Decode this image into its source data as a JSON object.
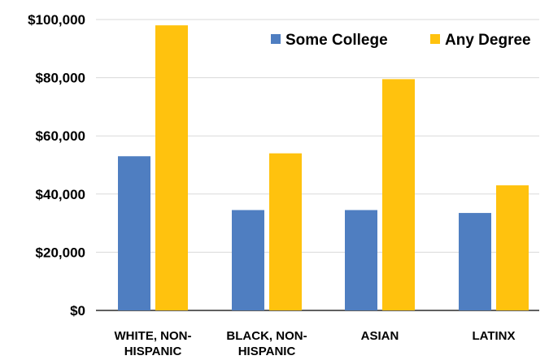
{
  "chart_data": {
    "type": "bar",
    "title": "",
    "xlabel": "",
    "ylabel": "",
    "categories": [
      [
        "WHITE, NON-",
        "HISPANIC"
      ],
      [
        "BLACK, NON-",
        "HISPANIC"
      ],
      [
        "ASIAN"
      ],
      [
        "LATINX"
      ]
    ],
    "series": [
      {
        "name": "Some College",
        "color": "#4f7ec1",
        "values": [
          53000,
          34500,
          34500,
          33500
        ]
      },
      {
        "name": "Any Degree",
        "color": "#ffc20e",
        "values": [
          98000,
          54000,
          79500,
          43000
        ]
      }
    ],
    "ylim": [
      0,
      100000
    ],
    "yticks": [
      0,
      20000,
      40000,
      60000,
      80000,
      100000
    ],
    "ytick_labels": [
      "$0",
      "$20,000",
      "$40,000",
      "$60,000",
      "$80,000",
      "$100,000"
    ],
    "grid": true,
    "gridline_color": "#d9d9d9",
    "legend_position": "top-right"
  }
}
